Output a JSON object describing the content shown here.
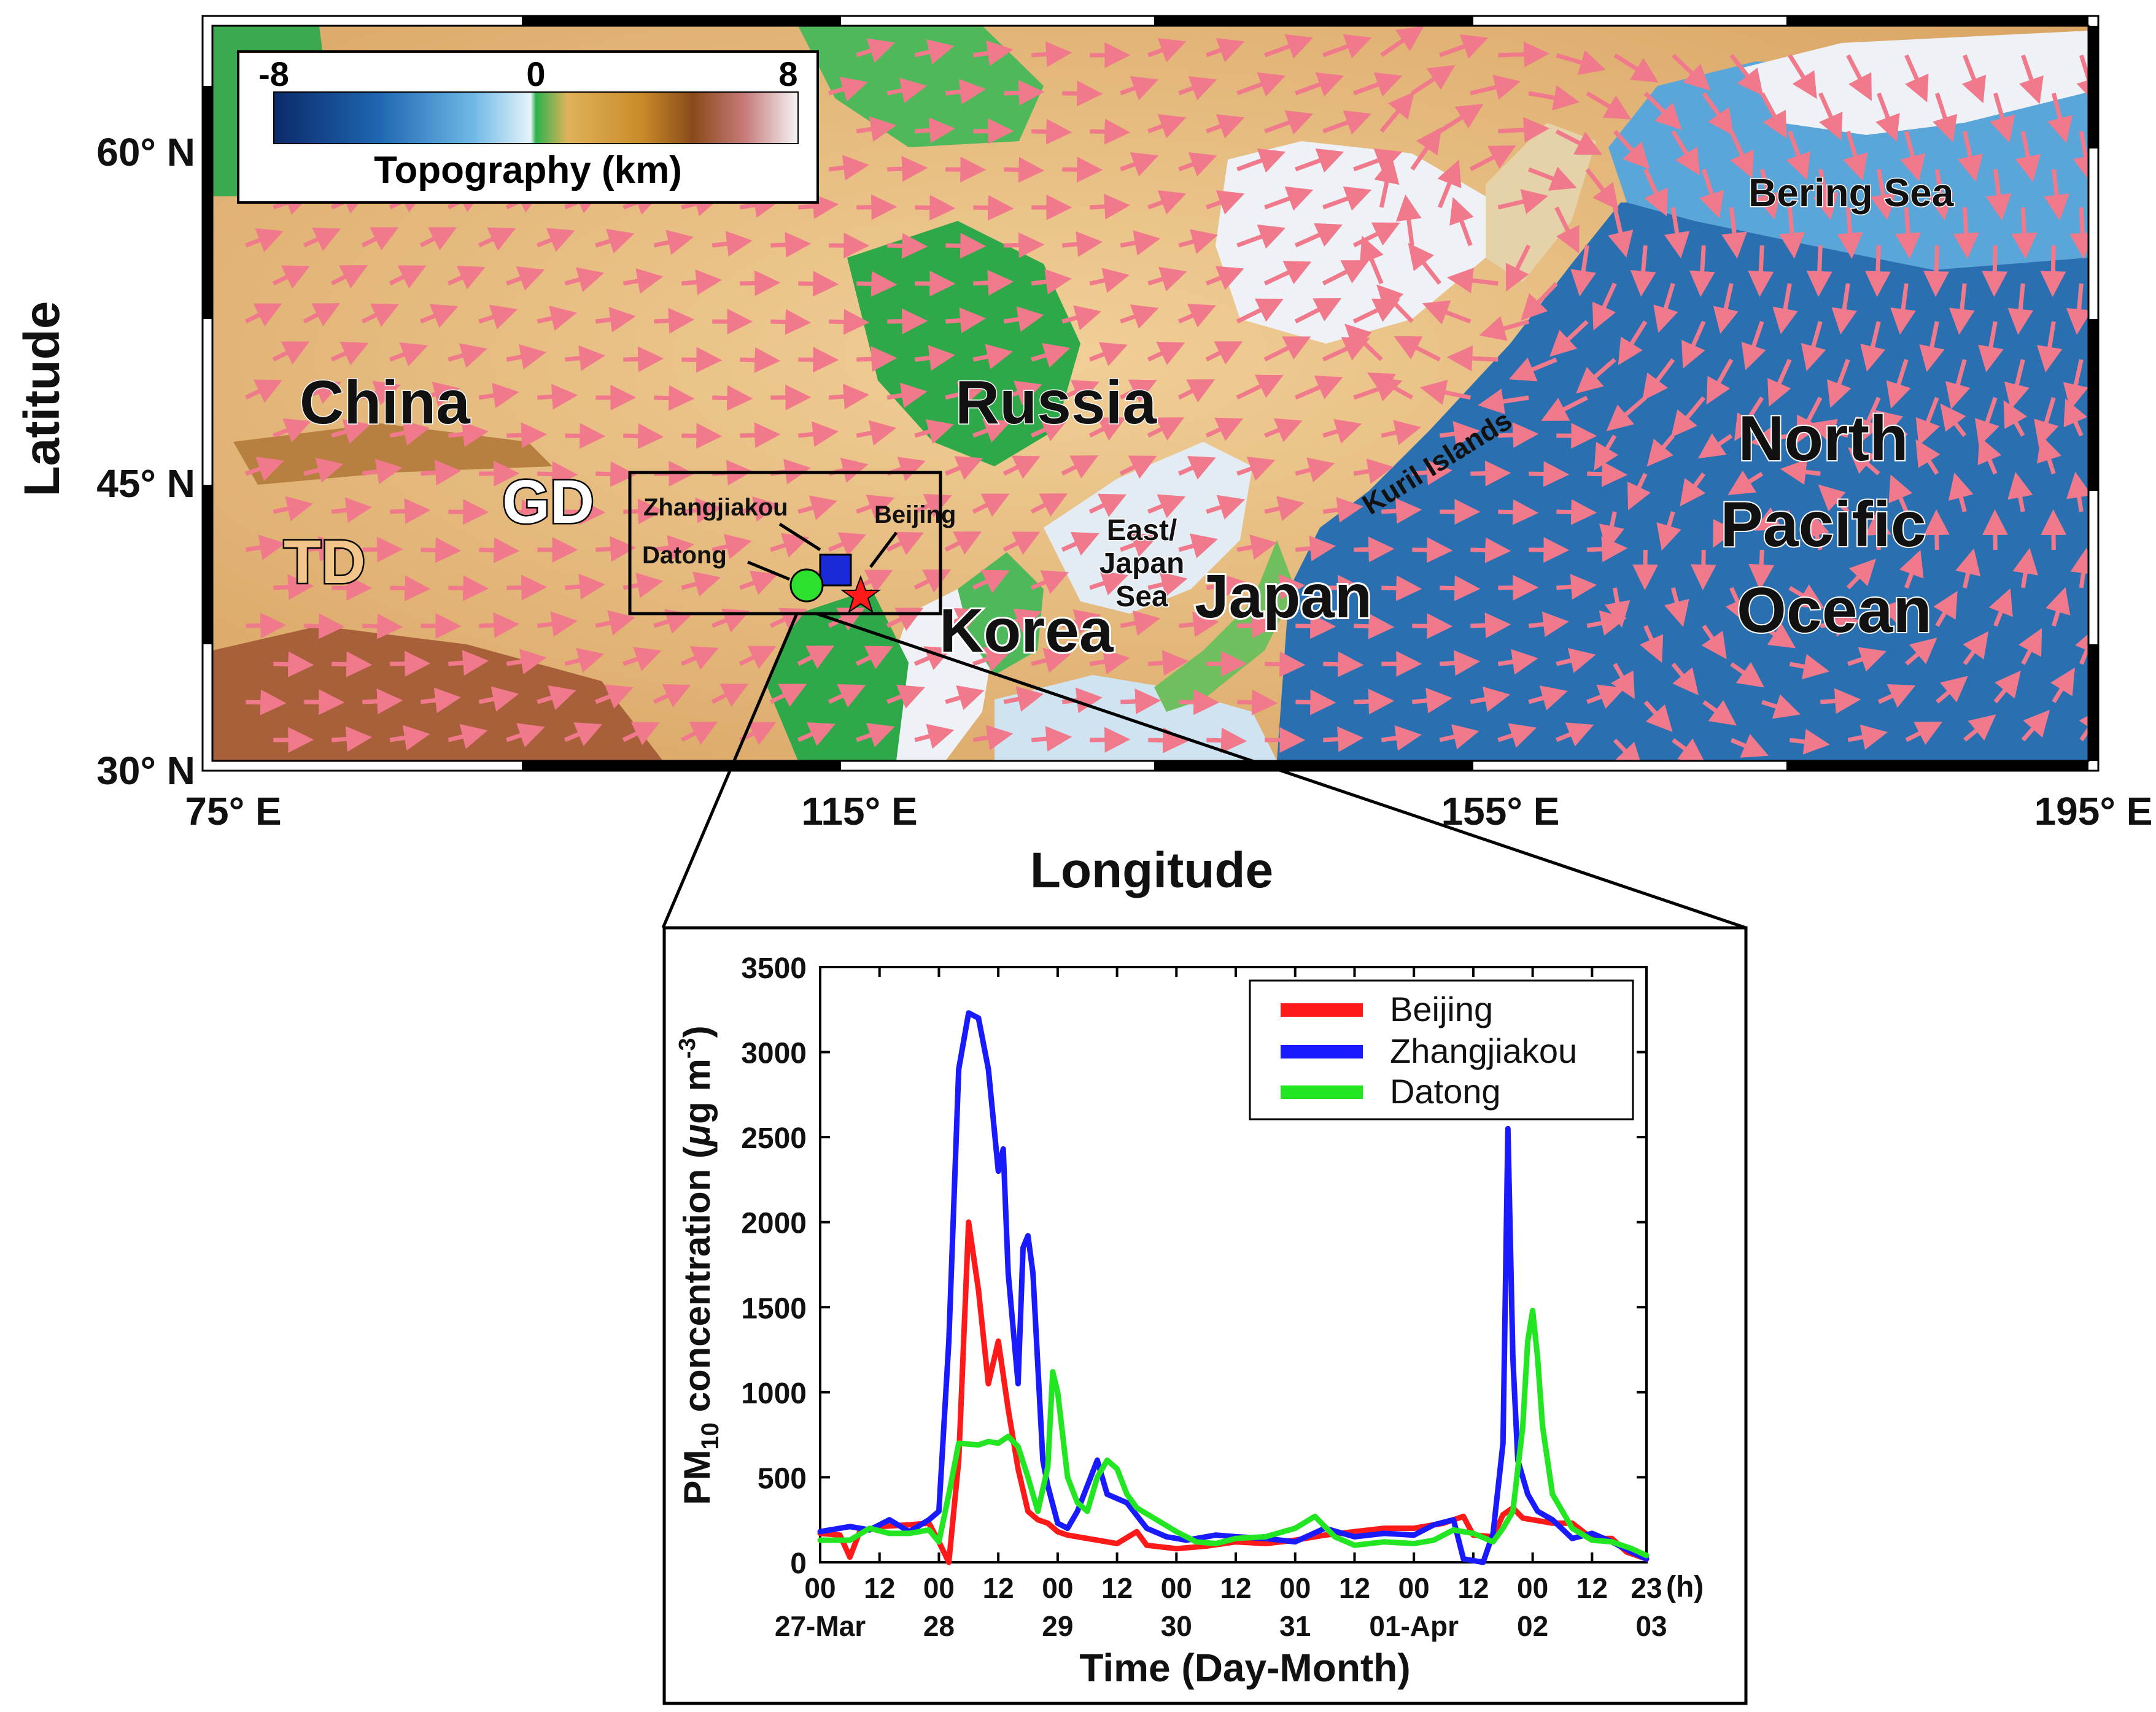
{
  "map": {
    "xlabel": "Longitude",
    "ylabel": "Latitude",
    "x_ticks": [
      "75° E",
      "115° E",
      "155° E",
      "195° E"
    ],
    "y_ticks": [
      "60° N",
      "45° N",
      "30° N"
    ],
    "colorbar": {
      "title": "Topography (km)",
      "min_label": "-8",
      "mid_label": "0",
      "max_label": "8",
      "colors": [
        "#0b2a6a",
        "#1e66b0",
        "#6fb8e6",
        "#e6f4fb",
        "#2bb24c",
        "#e0b25a",
        "#c98c2a",
        "#8a4a1a",
        "#c87c7c",
        "#f0f0f0"
      ]
    },
    "labels": {
      "china": "China",
      "russia": "Russia",
      "korea": "Korea",
      "japan": "Japan",
      "td": "TD",
      "gd": "GD",
      "east_japan_sea": [
        "East/",
        "Japan",
        "Sea"
      ],
      "bering_sea": "Bering Sea",
      "kuril": "Kuril Islands",
      "north_pacific": [
        "North",
        "Pacific",
        "Ocean"
      ]
    },
    "sites": {
      "beijing": "Beijing",
      "zhangjiakou": "Zhangjiakou",
      "datong": "Datong"
    },
    "colors": {
      "arrow": "#f07a8c",
      "land_low": "#e9c08a",
      "land_green": "#2fa84a",
      "ocean_deep": "#2a6fb0",
      "ice": "#eef2f6"
    }
  },
  "chart_data": {
    "type": "line",
    "xlabel": "Time (Day-Month)",
    "ylabel_main": "PM",
    "ylabel_sub": "10",
    "ylabel_rest": " concentration (",
    "ylabel_mu": "μ",
    "ylabel_unit": "g m",
    "ylabel_exp": "-3",
    "ylabel_close": ")",
    "x_unit_label": "(h)",
    "x_range_hours": [
      0,
      167
    ],
    "ylim": [
      0,
      3500
    ],
    "y_ticks": [
      0,
      500,
      1000,
      1500,
      2000,
      2500,
      3000,
      3500
    ],
    "x_hour_ticks": [
      {
        "h": 0,
        "label": "00"
      },
      {
        "h": 12,
        "label": "12"
      },
      {
        "h": 24,
        "label": "00"
      },
      {
        "h": 36,
        "label": "12"
      },
      {
        "h": 48,
        "label": "00"
      },
      {
        "h": 60,
        "label": "12"
      },
      {
        "h": 72,
        "label": "00"
      },
      {
        "h": 84,
        "label": "12"
      },
      {
        "h": 96,
        "label": "00"
      },
      {
        "h": 108,
        "label": "12"
      },
      {
        "h": 120,
        "label": "00"
      },
      {
        "h": 132,
        "label": "12"
      },
      {
        "h": 144,
        "label": "00"
      },
      {
        "h": 156,
        "label": "12"
      },
      {
        "h": 167,
        "label": "23"
      }
    ],
    "x_day_labels": [
      {
        "h": 0,
        "label": "27-Mar"
      },
      {
        "h": 24,
        "label": "28"
      },
      {
        "h": 48,
        "label": "29"
      },
      {
        "h": 72,
        "label": "30"
      },
      {
        "h": 96,
        "label": "31"
      },
      {
        "h": 120,
        "label": "01-Apr"
      },
      {
        "h": 144,
        "label": "02"
      },
      {
        "h": 168,
        "label": "03"
      }
    ],
    "legend_position": "top-right",
    "series": [
      {
        "name": "Beijing",
        "color": "#ff1a1a",
        "points": [
          [
            0,
            170
          ],
          [
            4,
            160
          ],
          [
            6,
            30
          ],
          [
            8,
            180
          ],
          [
            12,
            210
          ],
          [
            18,
            220
          ],
          [
            22,
            230
          ],
          [
            24,
            120
          ],
          [
            26,
            0
          ],
          [
            28,
            600
          ],
          [
            30,
            2000
          ],
          [
            32,
            1600
          ],
          [
            34,
            1050
          ],
          [
            36,
            1300
          ],
          [
            38,
            900
          ],
          [
            40,
            550
          ],
          [
            42,
            300
          ],
          [
            44,
            250
          ],
          [
            46,
            230
          ],
          [
            48,
            180
          ],
          [
            50,
            160
          ],
          [
            54,
            140
          ],
          [
            60,
            110
          ],
          [
            64,
            180
          ],
          [
            66,
            100
          ],
          [
            72,
            80
          ],
          [
            78,
            95
          ],
          [
            84,
            120
          ],
          [
            90,
            110
          ],
          [
            96,
            130
          ],
          [
            102,
            160
          ],
          [
            108,
            180
          ],
          [
            114,
            200
          ],
          [
            120,
            200
          ],
          [
            126,
            230
          ],
          [
            130,
            270
          ],
          [
            132,
            160
          ],
          [
            136,
            150
          ],
          [
            138,
            280
          ],
          [
            140,
            320
          ],
          [
            142,
            260
          ],
          [
            144,
            250
          ],
          [
            148,
            230
          ],
          [
            152,
            230
          ],
          [
            156,
            140
          ],
          [
            160,
            140
          ],
          [
            163,
            60
          ],
          [
            167,
            20
          ]
        ]
      },
      {
        "name": "Zhangjiakou",
        "color": "#1a1aff",
        "points": [
          [
            0,
            180
          ],
          [
            6,
            210
          ],
          [
            10,
            190
          ],
          [
            14,
            250
          ],
          [
            18,
            180
          ],
          [
            22,
            250
          ],
          [
            24,
            300
          ],
          [
            26,
            1300
          ],
          [
            28,
            2900
          ],
          [
            30,
            3230
          ],
          [
            32,
            3200
          ],
          [
            34,
            2900
          ],
          [
            36,
            2300
          ],
          [
            37,
            2430
          ],
          [
            38,
            1700
          ],
          [
            40,
            1050
          ],
          [
            41,
            1850
          ],
          [
            42,
            1920
          ],
          [
            43,
            1700
          ],
          [
            45,
            600
          ],
          [
            46,
            450
          ],
          [
            48,
            230
          ],
          [
            50,
            200
          ],
          [
            52,
            300
          ],
          [
            56,
            600
          ],
          [
            58,
            400
          ],
          [
            62,
            350
          ],
          [
            66,
            200
          ],
          [
            70,
            150
          ],
          [
            74,
            130
          ],
          [
            80,
            160
          ],
          [
            84,
            150
          ],
          [
            90,
            140
          ],
          [
            96,
            120
          ],
          [
            102,
            200
          ],
          [
            108,
            150
          ],
          [
            114,
            170
          ],
          [
            120,
            160
          ],
          [
            124,
            220
          ],
          [
            128,
            250
          ],
          [
            130,
            20
          ],
          [
            134,
            0
          ],
          [
            136,
            170
          ],
          [
            138,
            700
          ],
          [
            139,
            2550
          ],
          [
            140,
            1200
          ],
          [
            141,
            600
          ],
          [
            143,
            400
          ],
          [
            145,
            300
          ],
          [
            148,
            250
          ],
          [
            152,
            140
          ],
          [
            156,
            170
          ],
          [
            160,
            120
          ],
          [
            164,
            60
          ],
          [
            167,
            20
          ]
        ]
      },
      {
        "name": "Datong",
        "color": "#22e622",
        "points": [
          [
            0,
            130
          ],
          [
            6,
            130
          ],
          [
            10,
            200
          ],
          [
            14,
            170
          ],
          [
            18,
            170
          ],
          [
            22,
            190
          ],
          [
            24,
            120
          ],
          [
            26,
            400
          ],
          [
            28,
            700
          ],
          [
            32,
            690
          ],
          [
            34,
            710
          ],
          [
            36,
            700
          ],
          [
            38,
            740
          ],
          [
            40,
            680
          ],
          [
            42,
            500
          ],
          [
            44,
            300
          ],
          [
            46,
            560
          ],
          [
            47,
            1120
          ],
          [
            48,
            1000
          ],
          [
            50,
            500
          ],
          [
            52,
            350
          ],
          [
            54,
            300
          ],
          [
            56,
            500
          ],
          [
            58,
            600
          ],
          [
            60,
            550
          ],
          [
            62,
            400
          ],
          [
            64,
            320
          ],
          [
            68,
            250
          ],
          [
            72,
            180
          ],
          [
            76,
            120
          ],
          [
            80,
            110
          ],
          [
            84,
            140
          ],
          [
            90,
            150
          ],
          [
            96,
            200
          ],
          [
            100,
            270
          ],
          [
            104,
            150
          ],
          [
            108,
            100
          ],
          [
            114,
            120
          ],
          [
            120,
            110
          ],
          [
            124,
            130
          ],
          [
            128,
            190
          ],
          [
            132,
            170
          ],
          [
            136,
            120
          ],
          [
            138,
            200
          ],
          [
            140,
            300
          ],
          [
            142,
            800
          ],
          [
            143,
            1300
          ],
          [
            144,
            1480
          ],
          [
            145,
            1200
          ],
          [
            146,
            800
          ],
          [
            148,
            400
          ],
          [
            152,
            200
          ],
          [
            156,
            130
          ],
          [
            160,
            120
          ],
          [
            164,
            80
          ],
          [
            167,
            40
          ]
        ]
      }
    ]
  }
}
